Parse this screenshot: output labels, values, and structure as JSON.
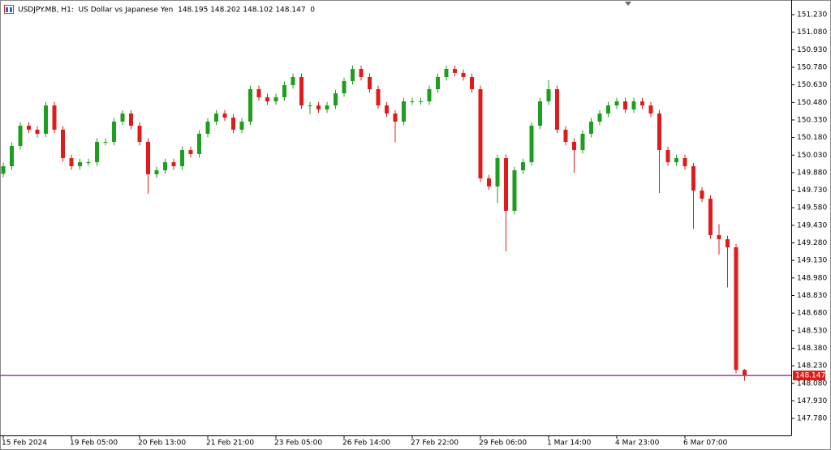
{
  "chart_data": {
    "type": "candlestick",
    "title": "USDJPY.MB, H1:  US Dollar vs Japanese Yen  148.195 148.202 148.102 148.147  0",
    "categories": [
      "15 Feb 2024",
      null,
      null,
      null,
      null,
      null,
      null,
      null,
      "19 Feb 05:00",
      null,
      null,
      null,
      null,
      null,
      null,
      null,
      "20 Feb 13:00",
      null,
      null,
      null,
      null,
      null,
      null,
      null,
      "21 Feb 21:00",
      null,
      null,
      null,
      null,
      null,
      null,
      null,
      "23 Feb 05:00",
      null,
      null,
      null,
      null,
      null,
      null,
      null,
      "26 Feb 14:00",
      null,
      null,
      null,
      null,
      null,
      null,
      null,
      "27 Feb 22:00",
      null,
      null,
      null,
      null,
      null,
      null,
      null,
      "29 Feb 06:00",
      null,
      null,
      null,
      null,
      null,
      null,
      null,
      "1 Mar 14:00",
      null,
      null,
      null,
      null,
      null,
      null,
      null,
      "4 Mar 23:00",
      null,
      null,
      null,
      null,
      null,
      null,
      null,
      "6 Mar 07:00",
      null,
      null,
      null,
      null,
      null,
      null,
      null
    ],
    "open": [
      149.87,
      149.935,
      150.108,
      150.281,
      150.247,
      150.212,
      150.454,
      150.247,
      150.004,
      149.935,
      149.969,
      149.969,
      150.143,
      150.143,
      150.316,
      150.385,
      150.281,
      150.143,
      149.866,
      149.9,
      149.969,
      149.935,
      150.073,
      150.039,
      150.212,
      150.316,
      150.385,
      150.35,
      150.247,
      150.316,
      150.593,
      150.524,
      150.489,
      150.524,
      150.628,
      150.697,
      150.454,
      150.454,
      150.42,
      150.454,
      150.558,
      150.662,
      150.766,
      150.697,
      150.593,
      150.454,
      150.385,
      150.316,
      150.489,
      150.489,
      150.489,
      150.593,
      150.697,
      150.766,
      150.732,
      150.697,
      150.593,
      149.831,
      149.762,
      150.004,
      149.554,
      149.9,
      149.969,
      150.281,
      150.489,
      150.593,
      150.247,
      150.143,
      150.073,
      150.212,
      150.316,
      150.385,
      150.454,
      150.489,
      150.42,
      150.489,
      150.454,
      150.385,
      150.073,
      149.969,
      150.004,
      149.935,
      149.727,
      149.658,
      149.346,
      149.311,
      149.242,
      148.195
    ],
    "high": [
      149.965,
      150.138,
      150.311,
      150.311,
      150.277,
      150.484,
      150.484,
      150.277,
      150.034,
      149.999,
      149.999,
      150.173,
      150.173,
      150.346,
      150.415,
      150.415,
      150.311,
      150.173,
      149.93,
      149.999,
      149.999,
      150.103,
      150.103,
      150.242,
      150.346,
      150.415,
      150.415,
      150.38,
      150.346,
      150.623,
      150.623,
      150.554,
      150.554,
      150.658,
      150.727,
      150.727,
      150.484,
      150.484,
      150.484,
      150.588,
      150.692,
      150.796,
      150.796,
      150.727,
      150.623,
      150.484,
      150.415,
      150.519,
      150.519,
      150.519,
      150.623,
      150.727,
      150.796,
      150.796,
      150.762,
      150.727,
      150.623,
      149.861,
      150.034,
      150.034,
      149.93,
      149.999,
      150.311,
      150.519,
      150.67,
      150.623,
      150.277,
      150.173,
      150.242,
      150.346,
      150.415,
      150.484,
      150.519,
      150.519,
      150.519,
      150.519,
      150.484,
      150.415,
      150.103,
      150.034,
      150.034,
      149.965,
      149.757,
      149.688,
      149.44,
      149.341,
      149.272,
      148.202
    ],
    "low": [
      149.84,
      149.905,
      150.078,
      150.217,
      150.182,
      150.182,
      150.217,
      149.974,
      149.905,
      149.905,
      149.939,
      149.939,
      150.113,
      150.113,
      150.286,
      150.251,
      150.113,
      149.7,
      149.836,
      149.87,
      149.905,
      149.905,
      150.009,
      150.009,
      150.182,
      150.286,
      150.32,
      150.217,
      150.217,
      150.286,
      150.494,
      150.459,
      150.459,
      150.494,
      150.598,
      150.424,
      150.38,
      150.39,
      150.39,
      150.424,
      150.528,
      150.632,
      150.667,
      150.563,
      150.424,
      150.355,
      150.14,
      150.286,
      150.459,
      150.459,
      150.459,
      150.563,
      150.667,
      150.702,
      150.667,
      150.563,
      149.801,
      149.732,
      149.62,
      149.207,
      149.524,
      149.87,
      149.939,
      150.251,
      150.459,
      150.217,
      150.113,
      149.88,
      150.043,
      150.182,
      150.286,
      150.355,
      150.424,
      150.39,
      150.39,
      150.424,
      150.355,
      149.706,
      149.939,
      149.939,
      149.905,
      149.4,
      149.628,
      149.316,
      149.18,
      148.9,
      148.165,
      148.102
    ],
    "close": [
      149.935,
      150.108,
      150.281,
      150.247,
      150.212,
      150.454,
      150.247,
      150.004,
      149.935,
      149.969,
      149.969,
      150.143,
      150.143,
      150.316,
      150.385,
      150.281,
      150.143,
      149.866,
      149.9,
      149.969,
      149.935,
      150.073,
      150.039,
      150.212,
      150.316,
      150.385,
      150.35,
      150.247,
      150.316,
      150.593,
      150.524,
      150.489,
      150.524,
      150.628,
      150.697,
      150.454,
      150.454,
      150.42,
      150.454,
      150.558,
      150.662,
      150.766,
      150.697,
      150.593,
      150.454,
      150.385,
      150.316,
      150.489,
      150.489,
      150.489,
      150.593,
      150.697,
      150.766,
      150.732,
      150.697,
      150.593,
      149.831,
      149.762,
      150.004,
      149.554,
      149.9,
      149.969,
      150.281,
      150.489,
      150.593,
      150.247,
      150.143,
      150.073,
      150.212,
      150.316,
      150.385,
      150.454,
      150.489,
      150.42,
      150.489,
      150.454,
      150.385,
      150.073,
      149.969,
      150.004,
      149.935,
      149.727,
      149.658,
      149.346,
      149.311,
      149.242,
      148.195,
      148.147
    ],
    "up_color": "#1e9e1e",
    "down_color": "#e01b1b",
    "current_price": 148.147,
    "current_price_color": "#a03ca0",
    "ylim": [
      147.635,
      151.355
    ],
    "yticks": [
      {
        "value": 151.23,
        "label": "151.230"
      },
      {
        "value": 151.08,
        "label": "151.080"
      },
      {
        "value": 150.93,
        "label": "150.930"
      },
      {
        "value": 150.78,
        "label": "150.780"
      },
      {
        "value": 150.63,
        "label": "150.630"
      },
      {
        "value": 150.48,
        "label": "150.480"
      },
      {
        "value": 150.33,
        "label": "150.330"
      },
      {
        "value": 150.18,
        "label": "150.180"
      },
      {
        "value": 150.03,
        "label": "150.030"
      },
      {
        "value": 149.88,
        "label": "149.880"
      },
      {
        "value": 149.73,
        "label": "149.730"
      },
      {
        "value": 149.58,
        "label": "149.580"
      },
      {
        "value": 149.43,
        "label": "149.430"
      },
      {
        "value": 149.28,
        "label": "149.280"
      },
      {
        "value": 149.13,
        "label": "149.130"
      },
      {
        "value": 148.98,
        "label": "148.980"
      },
      {
        "value": 148.83,
        "label": "148.830"
      },
      {
        "value": 148.68,
        "label": "148.680"
      },
      {
        "value": 148.53,
        "label": "148.530"
      },
      {
        "value": 148.38,
        "label": "148.380"
      },
      {
        "value": 148.23,
        "label": "148.230"
      },
      {
        "value": 148.08,
        "label": "148.080"
      },
      {
        "value": 147.93,
        "label": "147.930"
      },
      {
        "value": 147.78,
        "label": "147.780"
      }
    ],
    "grid": false
  }
}
